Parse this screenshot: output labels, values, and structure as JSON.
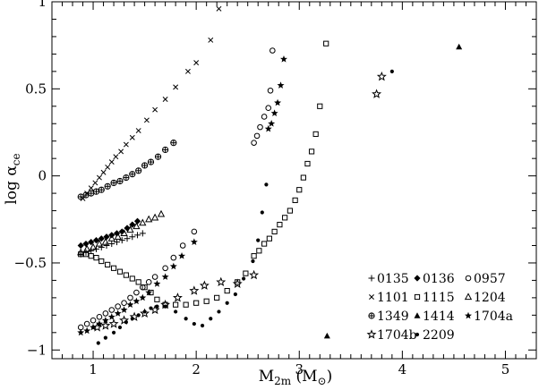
{
  "chart_data": {
    "type": "scatter",
    "title": "",
    "xlabel": {
      "main": "M",
      "sub": "2m",
      "unit": "(M",
      "unit_symbol": "⊙",
      "unit_end": ")"
    },
    "ylabel": {
      "main": "log α",
      "sub": "ce"
    },
    "xlim": [
      0.6,
      5.3
    ],
    "ylim": [
      -1.05,
      1.0
    ],
    "xticks": [
      1,
      2,
      3,
      4,
      5
    ],
    "xtick_labels": [
      "1",
      "2",
      "3",
      "4",
      "5"
    ],
    "yticks": [
      -1,
      -0.5,
      0,
      0.5,
      1
    ],
    "ytick_labels": [
      "−1",
      "−0.5",
      "0",
      "0.5",
      "1"
    ],
    "grid": false,
    "legend_position": "bottom-right",
    "series": [
      {
        "name": "0135",
        "marker": "plus",
        "x": [
          0.88,
          0.93,
          0.98,
          1.03,
          1.08,
          1.13,
          1.18,
          1.23,
          1.28,
          1.33,
          1.38,
          1.43,
          1.48
        ],
        "y": [
          -0.45,
          -0.44,
          -0.43,
          -0.42,
          -0.41,
          -0.4,
          -0.39,
          -0.38,
          -0.37,
          -0.36,
          -0.35,
          -0.34,
          -0.33
        ]
      },
      {
        "name": "0136",
        "marker": "filled-diamond",
        "x": [
          0.88,
          0.93,
          0.98,
          1.03,
          1.08,
          1.13,
          1.18,
          1.23,
          1.28,
          1.33,
          1.38,
          1.43
        ],
        "y": [
          -0.4,
          -0.39,
          -0.38,
          -0.37,
          -0.36,
          -0.35,
          -0.34,
          -0.33,
          -0.32,
          -0.3,
          -0.28,
          -0.26
        ]
      },
      {
        "name": "0957",
        "marker": "open-circle",
        "x": [
          0.88,
          0.94,
          1.0,
          1.06,
          1.12,
          1.18,
          1.24,
          1.3,
          1.36,
          1.42,
          1.48,
          1.54,
          1.6,
          1.7,
          1.78,
          1.87,
          1.98,
          2.56,
          2.59,
          2.62,
          2.66,
          2.7,
          2.72,
          2.74
        ],
        "y": [
          -0.87,
          -0.85,
          -0.83,
          -0.81,
          -0.79,
          -0.77,
          -0.75,
          -0.73,
          -0.7,
          -0.67,
          -0.64,
          -0.61,
          -0.58,
          -0.53,
          -0.47,
          -0.4,
          -0.32,
          0.19,
          0.23,
          0.28,
          0.34,
          0.39,
          0.49,
          0.72
        ]
      },
      {
        "name": "1101",
        "marker": "cross",
        "x": [
          0.9,
          0.94,
          0.98,
          1.02,
          1.06,
          1.1,
          1.14,
          1.18,
          1.22,
          1.27,
          1.32,
          1.38,
          1.44,
          1.52,
          1.6,
          1.7,
          1.8,
          1.92,
          2.0,
          2.14,
          2.22
        ],
        "y": [
          -0.13,
          -0.1,
          -0.07,
          -0.04,
          -0.01,
          0.02,
          0.05,
          0.08,
          0.11,
          0.14,
          0.18,
          0.22,
          0.26,
          0.32,
          0.38,
          0.44,
          0.51,
          0.6,
          0.65,
          0.78,
          0.96
        ]
      },
      {
        "name": "1115",
        "marker": "open-square",
        "x": [
          0.88,
          0.93,
          0.98,
          1.03,
          1.08,
          1.14,
          1.2,
          1.26,
          1.32,
          1.38,
          1.44,
          1.5,
          1.56,
          1.62,
          1.7,
          1.8,
          1.9,
          2.0,
          2.1,
          2.2,
          2.3,
          2.4,
          2.48,
          2.56,
          2.61,
          2.66,
          2.71,
          2.76,
          2.81,
          2.86,
          2.91,
          2.96,
          3.0,
          3.04,
          3.08,
          3.12,
          3.16,
          3.2,
          3.26
        ],
        "y": [
          -0.45,
          -0.45,
          -0.46,
          -0.47,
          -0.49,
          -0.51,
          -0.53,
          -0.55,
          -0.57,
          -0.59,
          -0.61,
          -0.64,
          -0.67,
          -0.71,
          -0.74,
          -0.74,
          -0.74,
          -0.73,
          -0.72,
          -0.7,
          -0.66,
          -0.61,
          -0.56,
          -0.46,
          -0.43,
          -0.39,
          -0.36,
          -0.32,
          -0.28,
          -0.24,
          -0.2,
          -0.14,
          -0.08,
          -0.01,
          0.07,
          0.14,
          0.24,
          0.4,
          0.76
        ]
      },
      {
        "name": "1204",
        "marker": "open-triangle",
        "x": [
          0.88,
          0.94,
          1.0,
          1.06,
          1.12,
          1.18,
          1.24,
          1.3,
          1.36,
          1.42,
          1.48,
          1.54,
          1.6,
          1.66
        ],
        "y": [
          -0.44,
          -0.42,
          -0.41,
          -0.39,
          -0.38,
          -0.36,
          -0.35,
          -0.33,
          -0.31,
          -0.29,
          -0.27,
          -0.25,
          -0.24,
          -0.22
        ]
      },
      {
        "name": "1349",
        "marker": "circle-plus",
        "x": [
          0.88,
          0.93,
          0.98,
          1.03,
          1.08,
          1.14,
          1.2,
          1.26,
          1.32,
          1.38,
          1.44,
          1.5,
          1.56,
          1.63,
          1.7,
          1.78
        ],
        "y": [
          -0.12,
          -0.11,
          -0.1,
          -0.09,
          -0.08,
          -0.06,
          -0.04,
          -0.03,
          -0.01,
          0.01,
          0.03,
          0.06,
          0.08,
          0.11,
          0.15,
          0.19
        ]
      },
      {
        "name": "1414",
        "marker": "filled-triangle",
        "x": [
          3.27,
          4.55
        ],
        "y": [
          -0.92,
          0.74
        ]
      },
      {
        "name": "1704a",
        "marker": "filled-star",
        "x": [
          0.88,
          0.94,
          1.0,
          1.06,
          1.12,
          1.18,
          1.24,
          1.3,
          1.36,
          1.42,
          1.48,
          1.54,
          1.62,
          1.7,
          1.78,
          1.86,
          1.98,
          2.7,
          2.73,
          2.76,
          2.79,
          2.82,
          2.85
        ],
        "y": [
          -0.9,
          -0.89,
          -0.87,
          -0.85,
          -0.83,
          -0.81,
          -0.79,
          -0.77,
          -0.74,
          -0.72,
          -0.7,
          -0.67,
          -0.62,
          -0.58,
          -0.52,
          -0.46,
          -0.38,
          0.27,
          0.3,
          0.36,
          0.42,
          0.52,
          0.67
        ]
      },
      {
        "name": "1704b",
        "marker": "open-star",
        "x": [
          1.04,
          1.12,
          1.2,
          1.3,
          1.4,
          1.5,
          1.6,
          1.7,
          1.82,
          1.98,
          2.08,
          2.24,
          2.4,
          2.56,
          3.75,
          3.8
        ],
        "y": [
          -0.87,
          -0.86,
          -0.85,
          -0.83,
          -0.81,
          -0.79,
          -0.77,
          -0.74,
          -0.7,
          -0.66,
          -0.63,
          -0.61,
          -0.62,
          -0.57,
          0.47,
          0.57
        ]
      },
      {
        "name": "2209",
        "marker": "filled-circle",
        "x": [
          1.05,
          1.12,
          1.2,
          1.26,
          1.32,
          1.38,
          1.44,
          1.5,
          1.56,
          1.62,
          1.7,
          1.8,
          1.9,
          1.98,
          2.06,
          2.14,
          2.22,
          2.3,
          2.38,
          2.46,
          2.55,
          2.6,
          2.64,
          2.68,
          3.9
        ],
        "y": [
          -0.96,
          -0.93,
          -0.9,
          -0.87,
          -0.84,
          -0.82,
          -0.8,
          -0.78,
          -0.76,
          -0.75,
          -0.75,
          -0.78,
          -0.82,
          -0.85,
          -0.86,
          -0.82,
          -0.78,
          -0.73,
          -0.68,
          -0.59,
          -0.49,
          -0.37,
          -0.21,
          -0.05,
          0.6
        ]
      }
    ]
  }
}
